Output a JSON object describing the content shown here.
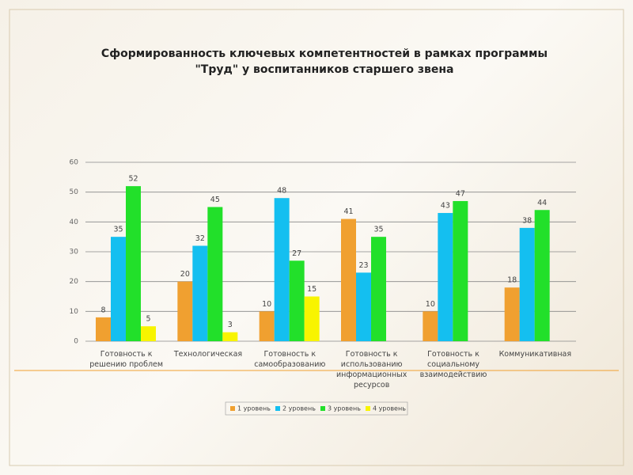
{
  "chart_data": {
    "type": "bar",
    "title": [
      "Сформированность ключевых компетентностей в рамках программы",
      "\"Труд\" у воспитанников старшего звена"
    ],
    "categories": [
      "Готовность к решению проблем",
      "Технологическая",
      "Готовность к самообразованию",
      "Готовность к использованию информационных ресурсов",
      "Готовность к социальному взаимодействию",
      "Коммуникативная"
    ],
    "series": [
      {
        "name": "1 уровень",
        "color": "#f0a030",
        "values": [
          8,
          20,
          10,
          41,
          10,
          18
        ]
      },
      {
        "name": "2 уровень",
        "color": "#14bff0",
        "values": [
          35,
          32,
          48,
          23,
          43,
          38
        ]
      },
      {
        "name": "3 уровень",
        "color": "#22e02a",
        "values": [
          52,
          45,
          27,
          35,
          47,
          44
        ]
      },
      {
        "name": "4 уровень",
        "color": "#f8f400",
        "values": [
          5,
          3,
          15,
          null,
          null,
          null
        ]
      }
    ],
    "ylim": [
      0,
      60
    ],
    "yticks": [
      0,
      10,
      20,
      30,
      40,
      50,
      60
    ],
    "grid": true,
    "legend": "bottom"
  }
}
